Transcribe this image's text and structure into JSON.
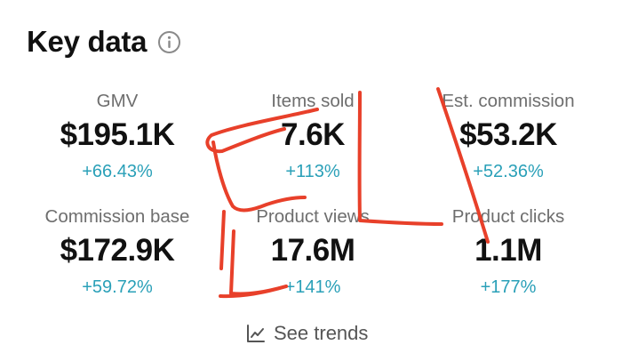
{
  "header": {
    "title": "Key data",
    "info_icon": "info-circle-icon"
  },
  "metrics": [
    {
      "label": "GMV",
      "value": "$195.1K",
      "change": "+66.43%"
    },
    {
      "label": "Items sold",
      "value": "7.6K",
      "change": "+113%"
    },
    {
      "label": "Est. commission",
      "value": "$53.2K",
      "change": "+52.36%"
    },
    {
      "label": "Commission base",
      "value": "$172.9K",
      "change": "+59.72%"
    },
    {
      "label": "Product views",
      "value": "17.6M",
      "change": "+141%"
    },
    {
      "label": "Product clicks",
      "value": "1.1M",
      "change": "+177%"
    }
  ],
  "trends": {
    "label": "See trends",
    "icon": "line-chart-icon"
  },
  "colors": {
    "accent_change": "#2aa0b8",
    "annotation_stroke": "#e8402a"
  }
}
